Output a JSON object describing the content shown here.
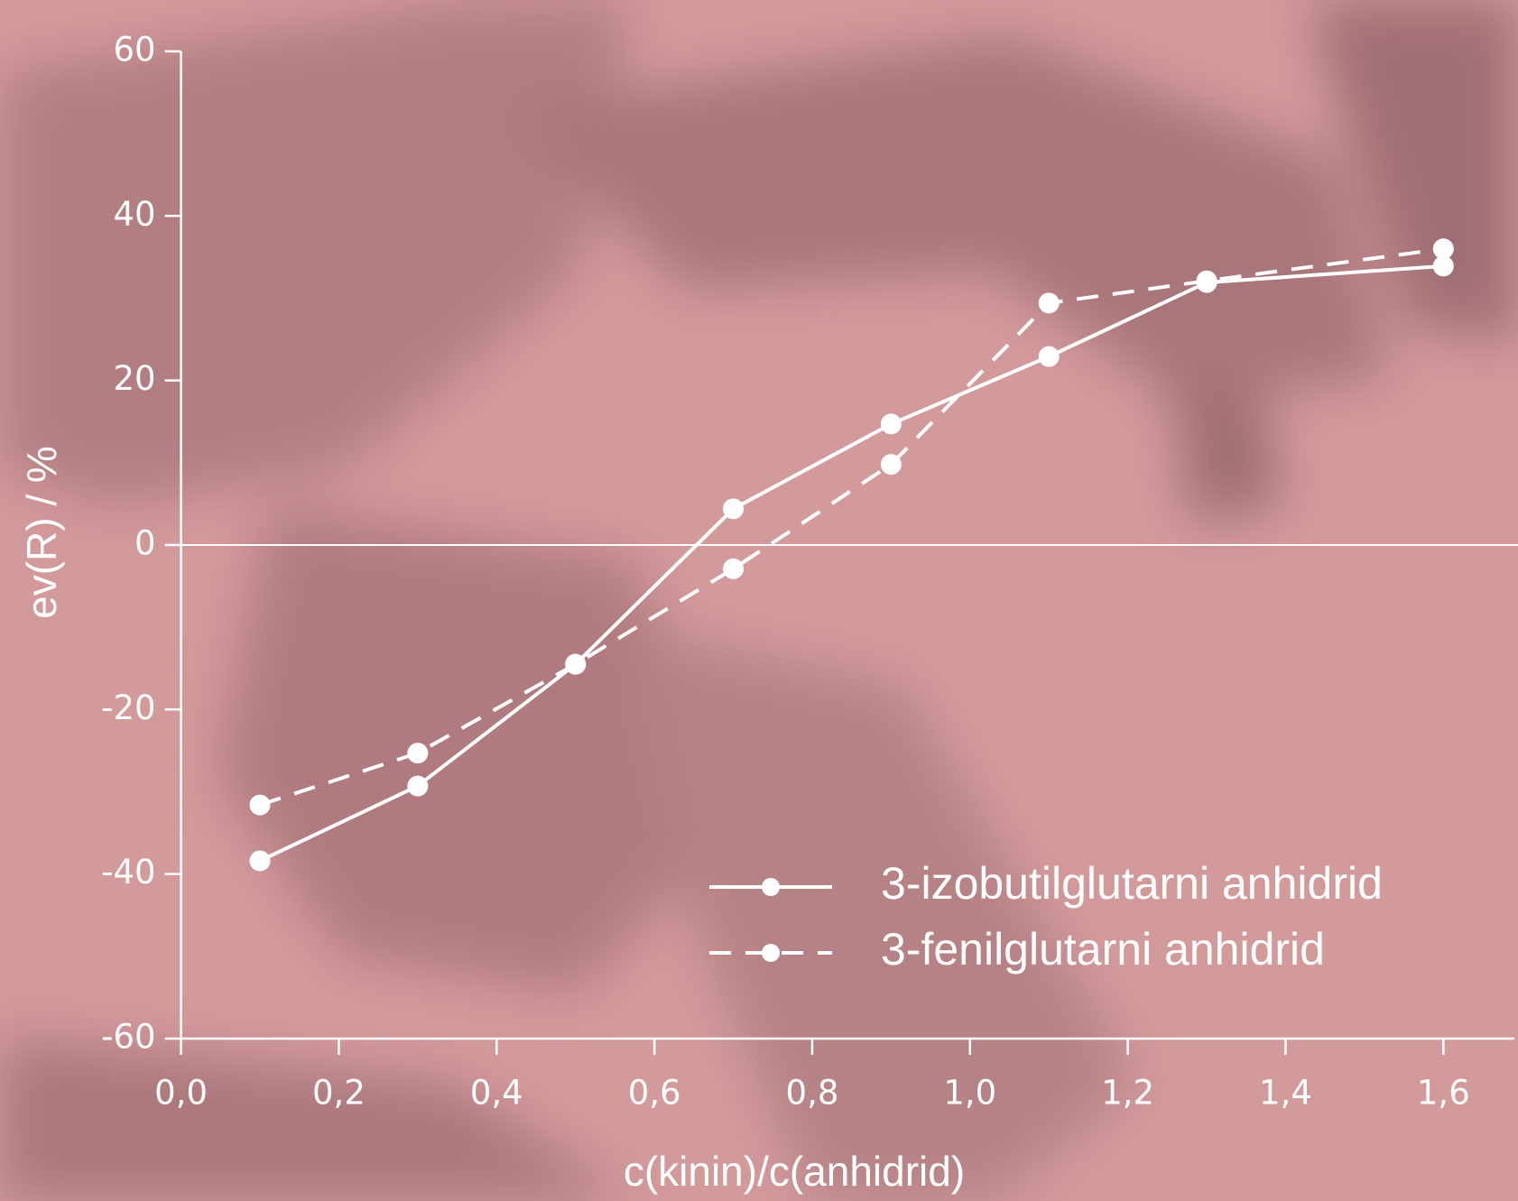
{
  "chart_data": {
    "type": "line",
    "xlabel": "c(kinin)/c(anhidrid)",
    "ylabel": "ev(R) / %",
    "xlim": [
      0,
      1.69
    ],
    "ylim": [
      -60,
      60
    ],
    "xticks": [
      {
        "value": 0,
        "label": "0,0"
      },
      {
        "value": 0.2,
        "label": "0,2"
      },
      {
        "value": 0.4,
        "label": "0,4"
      },
      {
        "value": 0.6,
        "label": "0,6"
      },
      {
        "value": 0.8,
        "label": "0,8"
      },
      {
        "value": 1.0,
        "label": "1,0"
      },
      {
        "value": 1.2,
        "label": "1,2"
      },
      {
        "value": 1.4,
        "label": "1,4"
      },
      {
        "value": 1.6,
        "label": "1,6"
      }
    ],
    "yticks": [
      -60,
      -40,
      -20,
      0,
      20,
      40,
      60
    ],
    "zero_line": true,
    "legend": "lower right",
    "x": [
      0.1,
      0.3,
      0.5,
      0.7,
      0.9,
      1.1,
      1.3,
      1.6
    ],
    "series": [
      {
        "name": "3-izobutilglutarni anhidrid",
        "color": "#ffffff",
        "dash": "solid",
        "values": [
          -38.4,
          -29.3,
          -14.5,
          4.4,
          14.7,
          22.9,
          31.9,
          33.9
        ]
      },
      {
        "name": "3-fenilglutarni anhidrid",
        "color": "#ffffff",
        "dash": "dashed",
        "values": [
          -31.6,
          -25.3,
          -14.5,
          -2.9,
          9.8,
          29.4,
          32.1,
          36.0
        ]
      }
    ]
  }
}
